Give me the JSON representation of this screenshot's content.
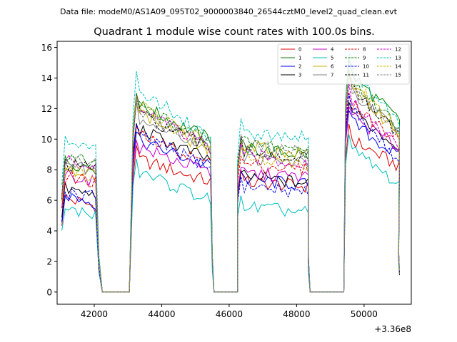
{
  "header": {
    "data_file_label": "Data file: modeM0/AS1A09_095T02_9000003840_26544cztM0_level2_quad_clean.evt"
  },
  "chart_data": {
    "type": "line",
    "title": "Quadrant 1 module wise count rates with 100.0s bins.",
    "xlabel": "",
    "ylabel": "",
    "x_offset_label": "+3.36e8",
    "xlim": [
      40900,
      51400
    ],
    "ylim": [
      -0.8,
      16.4
    ],
    "x_ticks": [
      42000,
      44000,
      46000,
      48000,
      50000
    ],
    "x_tick_labels": [
      "42000",
      "44000",
      "46000",
      "48000",
      "50000"
    ],
    "y_ticks": [
      0,
      2,
      4,
      6,
      8,
      10,
      12,
      14,
      16
    ],
    "y_tick_labels": [
      "0",
      "2",
      "4",
      "6",
      "8",
      "10",
      "12",
      "14",
      "16"
    ],
    "legend_position": "top-right",
    "segments": [
      {
        "start": 41040,
        "end": 42040,
        "drop_end": 42240
      },
      {
        "start": 43150,
        "end": 45450,
        "drop_end": 45550
      },
      {
        "start": 46250,
        "end": 48300,
        "drop_end": 48400
      },
      {
        "start": 49450,
        "end": 51000,
        "drop_end": 51050
      }
    ],
    "gap_ranges": [
      [
        42240,
        43050
      ],
      [
        45550,
        46250
      ],
      [
        48400,
        49400
      ]
    ],
    "series": [
      {
        "name": "0",
        "color": "#dd0000",
        "dash": false,
        "levels": [
          6.2,
          8.8,
          7.2,
          10.2
        ],
        "decays": [
          0.6,
          1.6,
          0.3,
          2.0
        ]
      },
      {
        "name": "1",
        "color": "#008000",
        "dash": false,
        "levels": [
          8.6,
          12.4,
          9.4,
          14.6
        ],
        "decays": [
          0.5,
          2.4,
          0.4,
          3.4
        ]
      },
      {
        "name": "2",
        "color": "#0000ee",
        "dash": false,
        "levels": [
          6.4,
          10.0,
          7.4,
          11.4
        ],
        "decays": [
          0.6,
          1.8,
          0.4,
          2.6
        ]
      },
      {
        "name": "3",
        "color": "#000000",
        "dash": false,
        "levels": [
          6.8,
          10.8,
          7.6,
          12.2
        ],
        "decays": [
          0.5,
          2.2,
          0.5,
          2.8
        ]
      },
      {
        "name": "4",
        "color": "#cc00cc",
        "dash": false,
        "levels": [
          7.8,
          9.6,
          7.8,
          11.8
        ],
        "decays": [
          0.6,
          1.8,
          0.3,
          2.4
        ]
      },
      {
        "name": "5",
        "color": "#00bfbf",
        "dash": false,
        "levels": [
          5.4,
          8.0,
          5.6,
          9.6
        ],
        "decays": [
          0.3,
          2.0,
          0.4,
          2.6
        ]
      },
      {
        "name": "6",
        "color": "#c8b400",
        "dash": false,
        "levels": [
          8.2,
          12.0,
          9.6,
          13.8
        ],
        "decays": [
          0.4,
          2.8,
          0.6,
          3.4
        ]
      },
      {
        "name": "7",
        "color": "#808080",
        "dash": false,
        "levels": [
          8.4,
          11.6,
          8.8,
          13.4
        ],
        "decays": [
          0.4,
          2.2,
          0.4,
          3.0
        ]
      },
      {
        "name": "8",
        "color": "#dd0000",
        "dash": true,
        "levels": [
          7.6,
          10.4,
          8.4,
          12.6
        ],
        "decays": [
          0.4,
          2.0,
          0.4,
          2.8
        ]
      },
      {
        "name": "9",
        "color": "#008000",
        "dash": true,
        "levels": [
          8.8,
          12.4,
          9.8,
          14.2
        ],
        "decays": [
          0.4,
          2.6,
          0.5,
          3.4
        ]
      },
      {
        "name": "10",
        "color": "#0000ee",
        "dash": true,
        "levels": [
          6.6,
          10.4,
          7.0,
          12.4
        ],
        "decays": [
          0.4,
          2.2,
          0.5,
          3.8
        ]
      },
      {
        "name": "11",
        "color": "#000000",
        "dash": true,
        "levels": [
          8.4,
          11.8,
          9.2,
          13.6
        ],
        "decays": [
          0.4,
          2.4,
          0.5,
          3.4
        ]
      },
      {
        "name": "12",
        "color": "#cc00cc",
        "dash": true,
        "levels": [
          8.6,
          12.2,
          9.0,
          13.0
        ],
        "decays": [
          0.4,
          2.8,
          0.6,
          3.6
        ]
      },
      {
        "name": "13",
        "color": "#00bfbf",
        "dash": true,
        "levels": [
          9.8,
          13.5,
          10.4,
          14.8
        ],
        "decays": [
          0.4,
          3.4,
          0.2,
          3.6
        ]
      },
      {
        "name": "14",
        "color": "#c8b400",
        "dash": true,
        "levels": [
          8.0,
          12.4,
          9.0,
          14.2
        ],
        "decays": [
          0.4,
          2.8,
          0.6,
          3.6
        ]
      },
      {
        "name": "15",
        "color": "#808080",
        "dash": true,
        "levels": [
          8.8,
          12.0,
          9.6,
          13.8
        ],
        "decays": [
          0.4,
          2.4,
          0.4,
          3.4
        ]
      }
    ]
  }
}
